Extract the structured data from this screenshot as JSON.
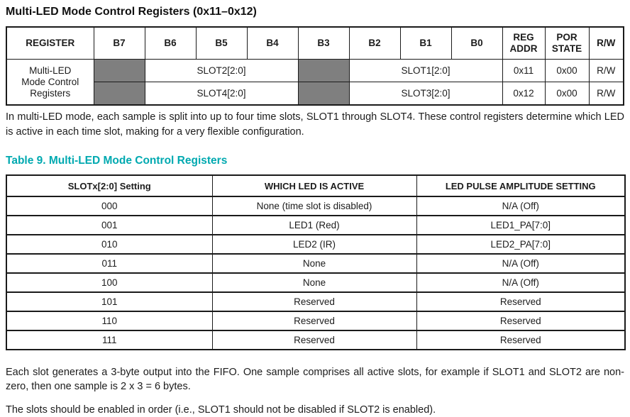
{
  "page": {
    "title": "Multi-LED Mode Control Registers (0x11–0x12)"
  },
  "register_table": {
    "headers": [
      "REGISTER",
      "B7",
      "B6",
      "B5",
      "B4",
      "B3",
      "B2",
      "B1",
      "B0",
      "REG ADDR",
      "POR STATE",
      "R/W"
    ],
    "register_name": "Multi-LED Mode Control Registers",
    "rows": [
      {
        "slot_high": "SLOT2[2:0]",
        "slot_low": "SLOT1[2:0]",
        "reg_addr": "0x11",
        "por_state": "0x00",
        "rw": "R/W"
      },
      {
        "slot_high": "SLOT4[2:0]",
        "slot_low": "SLOT3[2:0]",
        "reg_addr": "0x12",
        "por_state": "0x00",
        "rw": "R/W"
      }
    ],
    "description": "In multi-LED mode, each sample is split into up to four time slots, SLOT1 through SLOT4. These control registers determine which LED is active in each time slot, making for a very flexible configuration."
  },
  "table9": {
    "title": "Table 9. Multi-LED Mode Control Registers",
    "headers": [
      "SLOTx[2:0] Setting",
      "WHICH LED IS ACTIVE",
      "LED PULSE AMPLITUDE SETTING"
    ],
    "rows": [
      [
        "000",
        "None (time slot is disabled)",
        "N/A (Off)"
      ],
      [
        "001",
        "LED1 (Red)",
        "LED1_PA[7:0]"
      ],
      [
        "010",
        "LED2 (IR)",
        "LED2_PA[7:0]"
      ],
      [
        "011",
        "None",
        "N/A (Off)"
      ],
      [
        "100",
        "None",
        "N/A (Off)"
      ],
      [
        "101",
        "Reserved",
        "Reserved"
      ],
      [
        "110",
        "Reserved",
        "Reserved"
      ],
      [
        "111",
        "Reserved",
        "Reserved"
      ]
    ]
  },
  "notes": [
    "Each slot generates a 3-byte output into the FIFO. One sample comprises all active slots, for example if SLOT1 and SLOT2 are non-zero, then one sample is 2 x 3 = 6 bytes.",
    "The slots should be enabled in order (i.e., SLOT1 should not be disabled if SLOT2 is enabled)."
  ],
  "colors": {
    "accent_teal": "#00a9b0",
    "reserved_gray": "#7f7f7f"
  }
}
